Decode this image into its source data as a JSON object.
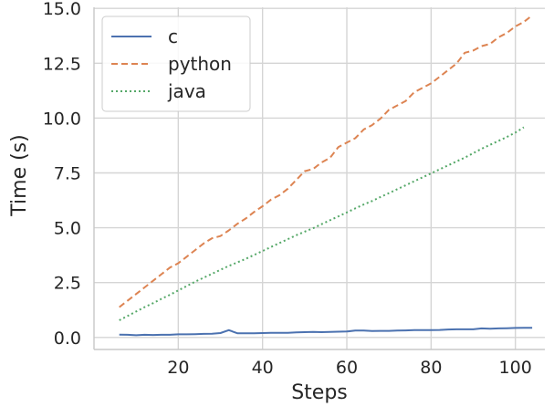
{
  "chart_data": {
    "type": "line",
    "xlabel": "Steps",
    "ylabel": "Time (s)",
    "xlim": [
      0,
      107
    ],
    "ylim": [
      -0.55,
      15.05
    ],
    "x_ticks": [
      20,
      40,
      60,
      80,
      100
    ],
    "y_ticks": [
      0.0,
      2.5,
      5.0,
      7.5,
      10.0,
      12.5,
      15.0
    ],
    "x_tick_labels": [
      "20",
      "40",
      "60",
      "80",
      "100"
    ],
    "y_tick_labels": [
      "0.0",
      "2.5",
      "5.0",
      "7.5",
      "10.0",
      "12.5",
      "15.0"
    ],
    "grid": true,
    "legend_position": "top-left",
    "colors": {
      "c": "#4c72b0",
      "python": "#dd8452",
      "java": "#55a868",
      "grid": "#d5d5d5",
      "spine": "#c8c8c8"
    },
    "series": [
      {
        "name": "c",
        "style": "solid",
        "x": [
          6,
          8,
          10,
          12,
          14,
          16,
          18,
          20,
          22,
          24,
          26,
          28,
          30,
          32,
          34,
          36,
          38,
          40,
          42,
          44,
          46,
          48,
          50,
          52,
          54,
          56,
          58,
          60,
          62,
          64,
          66,
          68,
          70,
          72,
          74,
          76,
          78,
          80,
          82,
          84,
          86,
          88,
          90,
          92,
          94,
          96,
          98,
          100,
          102,
          104
        ],
        "y": [
          0.13,
          0.12,
          0.1,
          0.12,
          0.11,
          0.12,
          0.12,
          0.14,
          0.14,
          0.15,
          0.16,
          0.17,
          0.2,
          0.33,
          0.19,
          0.19,
          0.19,
          0.2,
          0.21,
          0.21,
          0.21,
          0.23,
          0.24,
          0.25,
          0.24,
          0.25,
          0.26,
          0.27,
          0.31,
          0.31,
          0.29,
          0.3,
          0.3,
          0.31,
          0.32,
          0.33,
          0.33,
          0.33,
          0.34,
          0.36,
          0.37,
          0.37,
          0.37,
          0.41,
          0.4,
          0.41,
          0.42,
          0.43,
          0.44,
          0.44
        ]
      },
      {
        "name": "python",
        "style": "dashed",
        "x": [
          6,
          8,
          10,
          12,
          14,
          16,
          18,
          20,
          22,
          24,
          26,
          28,
          30,
          32,
          34,
          36,
          38,
          40,
          42,
          44,
          46,
          48,
          50,
          52,
          54,
          56,
          58,
          60,
          62,
          64,
          66,
          68,
          70,
          72,
          74,
          76,
          78,
          80,
          82,
          84,
          86,
          88,
          90,
          92,
          94,
          96,
          98,
          100,
          102,
          104
        ],
        "y": [
          1.38,
          1.68,
          1.98,
          2.28,
          2.58,
          2.88,
          3.18,
          3.38,
          3.68,
          3.98,
          4.28,
          4.52,
          4.62,
          4.88,
          5.18,
          5.42,
          5.72,
          5.98,
          6.28,
          6.48,
          6.78,
          7.18,
          7.58,
          7.68,
          7.98,
          8.18,
          8.68,
          8.88,
          9.08,
          9.48,
          9.68,
          9.98,
          10.38,
          10.58,
          10.78,
          11.18,
          11.38,
          11.58,
          11.88,
          12.18,
          12.48,
          12.98,
          13.08,
          13.28,
          13.38,
          13.68,
          13.88,
          14.18,
          14.38,
          14.68
        ]
      },
      {
        "name": "java",
        "style": "dotted",
        "x": [
          6,
          8,
          10,
          12,
          14,
          16,
          18,
          20,
          22,
          24,
          26,
          28,
          30,
          32,
          34,
          36,
          38,
          40,
          42,
          44,
          46,
          48,
          50,
          52,
          54,
          56,
          58,
          60,
          62,
          64,
          66,
          68,
          70,
          72,
          74,
          76,
          78,
          80,
          82,
          84,
          86,
          88,
          90,
          92,
          94,
          96,
          98,
          100,
          102
        ],
        "y": [
          0.78,
          0.98,
          1.18,
          1.38,
          1.56,
          1.76,
          1.94,
          2.14,
          2.34,
          2.54,
          2.72,
          2.9,
          3.08,
          3.26,
          3.42,
          3.58,
          3.76,
          3.94,
          4.12,
          4.3,
          4.48,
          4.66,
          4.82,
          4.98,
          5.16,
          5.34,
          5.52,
          5.7,
          5.88,
          6.06,
          6.22,
          6.4,
          6.58,
          6.76,
          6.94,
          7.12,
          7.3,
          7.48,
          7.66,
          7.84,
          8.02,
          8.2,
          8.4,
          8.6,
          8.78,
          8.96,
          9.14,
          9.34,
          9.58
        ]
      }
    ]
  }
}
